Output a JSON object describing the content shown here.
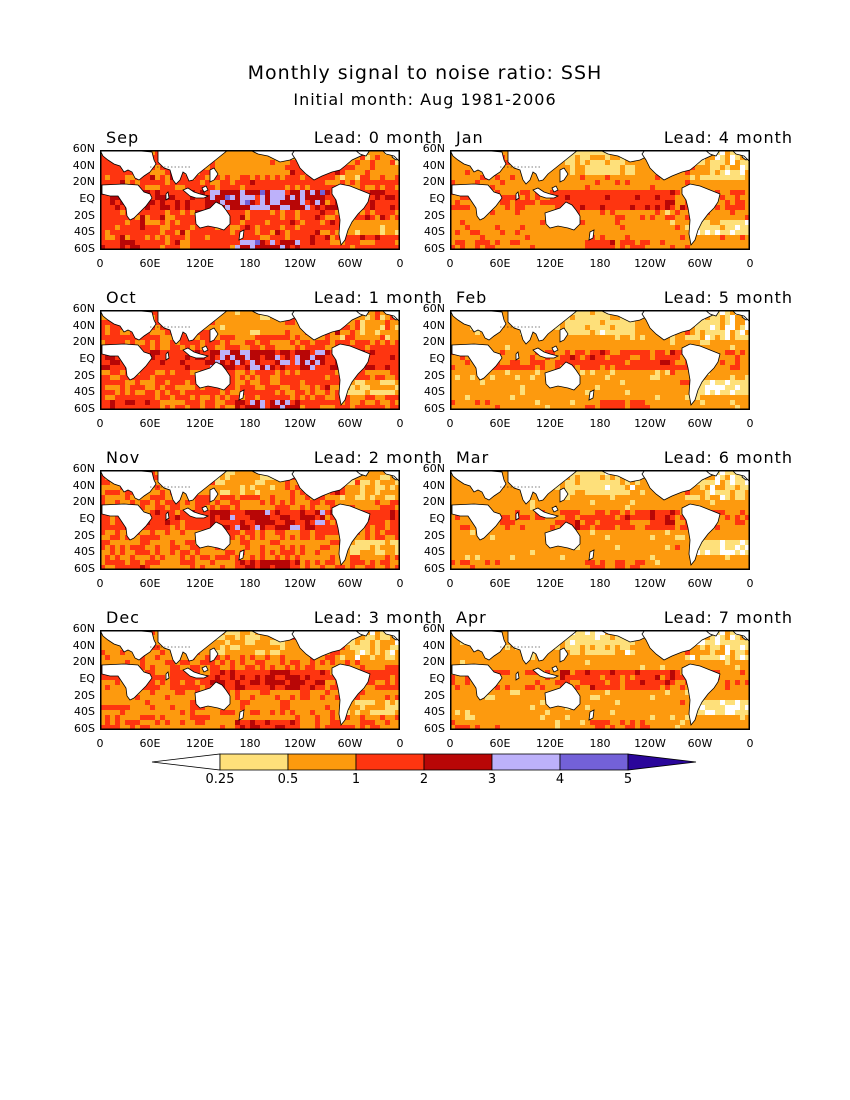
{
  "title": "Monthly signal to noise ratio: SSH",
  "subtitle": "Initial month: Aug 1981-2006",
  "panels": [
    {
      "month": "Sep",
      "lead": "Lead: 0 month",
      "variant": 0,
      "x_labels": [
        "0",
        "60E",
        "120E",
        "180",
        "120W",
        "60W",
        "0"
      ]
    },
    {
      "month": "Jan",
      "lead": "Lead: 4 month",
      "variant": 4,
      "x_labels": [
        "0",
        "60E",
        "120E",
        "180",
        "120W",
        "60W",
        "0"
      ]
    },
    {
      "month": "Oct",
      "lead": "Lead: 1 month",
      "variant": 1,
      "x_labels": [
        "0",
        "60E",
        "120E",
        "180",
        "120W",
        "60W",
        "0"
      ]
    },
    {
      "month": "Feb",
      "lead": "Lead: 5 month",
      "variant": 5,
      "x_labels": [
        "0",
        "60E",
        "120E",
        "180",
        "120W",
        "60W",
        "0"
      ]
    },
    {
      "month": "Nov",
      "lead": "Lead: 2 month",
      "variant": 2,
      "x_labels": [
        "0",
        "60E",
        "120E",
        "180",
        "120W",
        "60W",
        "0"
      ]
    },
    {
      "month": "Mar",
      "lead": "Lead: 6 month",
      "variant": 6,
      "x_labels": [
        "0",
        "60E",
        "120E",
        "180",
        "120W",
        "60W",
        "0"
      ]
    },
    {
      "month": "Dec",
      "lead": "Lead: 3 month",
      "variant": 3,
      "x_labels": [
        "0",
        "60E",
        "120E",
        "180",
        "120W",
        "60W",
        "0"
      ]
    },
    {
      "month": "Apr",
      "lead": "Lead: 7 month",
      "variant": 7,
      "x_labels": [
        "0",
        "60E",
        "120E",
        "180",
        "120W",
        "60W",
        "0"
      ]
    }
  ],
  "y_labels": [
    "60N",
    "40N",
    "20N",
    "EQ",
    "20S",
    "40S",
    "60S"
  ],
  "colorbar": {
    "levels": [
      "0.25",
      "0.5",
      "1",
      "2",
      "3",
      "4",
      "5"
    ],
    "colors": [
      "#ffffff",
      "#fee07a",
      "#fd9a0e",
      "#fe3510",
      "#b80606",
      "#bdb1fa",
      "#7361d8",
      "#2a069a"
    ]
  },
  "chart_data": {
    "type": "heatmap",
    "title": "Monthly signal to noise ratio: SSH",
    "subtitle": "Initial month: Aug 1981-2006",
    "variable": "SSH",
    "initial_month": "Aug",
    "years": "1981-2006",
    "panels": [
      {
        "target_month": "Sep",
        "lead_months": 0
      },
      {
        "target_month": "Oct",
        "lead_months": 1
      },
      {
        "target_month": "Nov",
        "lead_months": 2
      },
      {
        "target_month": "Dec",
        "lead_months": 3
      },
      {
        "target_month": "Jan",
        "lead_months": 4
      },
      {
        "target_month": "Feb",
        "lead_months": 5
      },
      {
        "target_month": "Mar",
        "lead_months": 6
      },
      {
        "target_month": "Apr",
        "lead_months": 7
      }
    ],
    "x_range": [
      "0",
      "0"
    ],
    "x_ticks": [
      "0",
      "60E",
      "120E",
      "180",
      "120W",
      "60W",
      "0"
    ],
    "y_range": [
      "60S",
      "60N"
    ],
    "y_ticks": [
      "60N",
      "40N",
      "20N",
      "EQ",
      "20S",
      "40S",
      "60S"
    ],
    "contour_levels": [
      0.25,
      0.5,
      1,
      2,
      3,
      4,
      5
    ],
    "level_colors": [
      "#ffffff",
      "#fee07a",
      "#fd9a0e",
      "#fe3510",
      "#b80606",
      "#bdb1fa",
      "#7361d8",
      "#2a069a"
    ],
    "colorbar_placement": "bottom"
  }
}
